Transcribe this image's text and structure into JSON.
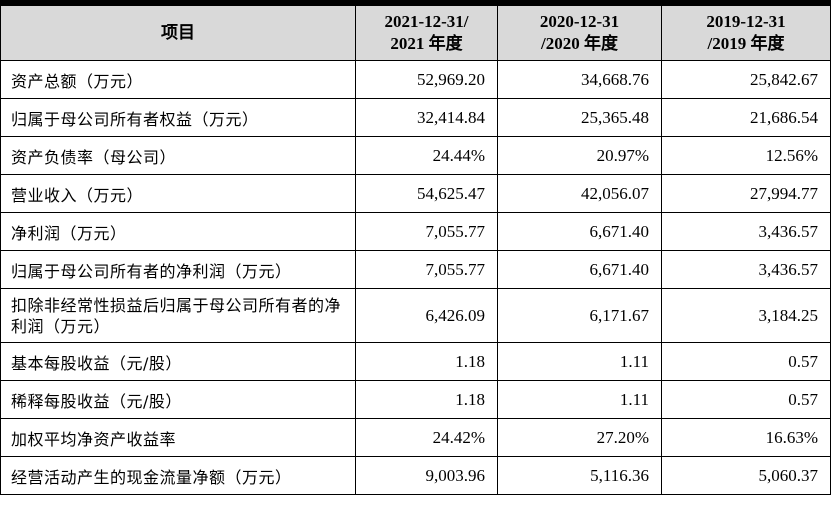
{
  "table": {
    "header": {
      "item": "项目",
      "col1_line1": "2021-12-31/",
      "col1_line2": "2021 年度",
      "col2_line1": "2020-12-31",
      "col2_line2": "/2020 年度",
      "col3_line1": "2019-12-31",
      "col3_line2": "/2019 年度"
    },
    "rows": [
      {
        "label": "资产总额（万元）",
        "v2021": "52,969.20",
        "v2020": "34,668.76",
        "v2019": "25,842.67"
      },
      {
        "label": "归属于母公司所有者权益（万元）",
        "v2021": "32,414.84",
        "v2020": "25,365.48",
        "v2019": "21,686.54"
      },
      {
        "label": "资产负债率（母公司）",
        "v2021": "24.44%",
        "v2020": "20.97%",
        "v2019": "12.56%"
      },
      {
        "label": "营业收入（万元）",
        "v2021": "54,625.47",
        "v2020": "42,056.07",
        "v2019": "27,994.77"
      },
      {
        "label": "净利润（万元）",
        "v2021": "7,055.77",
        "v2020": "6,671.40",
        "v2019": "3,436.57"
      },
      {
        "label": "归属于母公司所有者的净利润（万元）",
        "v2021": "7,055.77",
        "v2020": "6,671.40",
        "v2019": "3,436.57"
      },
      {
        "label": "扣除非经常性损益后归属于母公司所有者的净利润（万元）",
        "v2021": "6,426.09",
        "v2020": "6,171.67",
        "v2019": "3,184.25"
      },
      {
        "label": "基本每股收益（元/股）",
        "v2021": "1.18",
        "v2020": "1.11",
        "v2019": "0.57"
      },
      {
        "label": "稀释每股收益（元/股）",
        "v2021": "1.18",
        "v2020": "1.11",
        "v2019": "0.57"
      },
      {
        "label": "加权平均净资产收益率",
        "v2021": "24.42%",
        "v2020": "27.20%",
        "v2019": "16.63%"
      },
      {
        "label": "经营活动产生的现金流量净额（万元）",
        "v2021": "9,003.96",
        "v2020": "5,116.36",
        "v2019": "5,060.37"
      }
    ]
  }
}
